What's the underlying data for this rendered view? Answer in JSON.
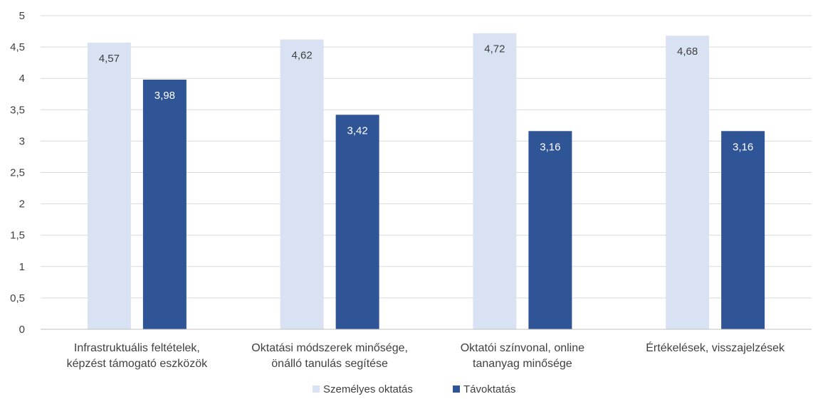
{
  "chart_data": {
    "type": "bar",
    "categories": [
      [
        "Infrastruktuális feltételek,",
        "képzést támogató eszközök"
      ],
      [
        "Oktatási módszerek minősége,",
        "önálló tanulás segítése"
      ],
      [
        "Oktatói színvonal, online",
        "tananyag minősége"
      ],
      [
        "Értékelések, visszajelzések"
      ]
    ],
    "series": [
      {
        "name": "Személyes oktatás",
        "color": "#d9e2f3",
        "label_color": "#404040",
        "values": [
          4.57,
          4.62,
          4.72,
          4.68
        ],
        "labels": [
          "4,57",
          "4,62",
          "4,72",
          "4,68"
        ]
      },
      {
        "name": "Távoktatás",
        "color": "#2f5597",
        "label_color": "#ffffff",
        "values": [
          3.98,
          3.42,
          3.16,
          3.16
        ],
        "labels": [
          "3,98",
          "3,42",
          "3,16",
          "3,16"
        ]
      }
    ],
    "ylim": [
      0,
      5
    ],
    "yticks": [
      0,
      0.5,
      1,
      1.5,
      2,
      2.5,
      3,
      3.5,
      4,
      4.5,
      5
    ],
    "ytick_labels": [
      "0",
      "0,5",
      "1",
      "1,5",
      "2",
      "2,5",
      "3",
      "3,5",
      "4",
      "4,5",
      "5"
    ],
    "grid": true,
    "legend": "bottom"
  }
}
